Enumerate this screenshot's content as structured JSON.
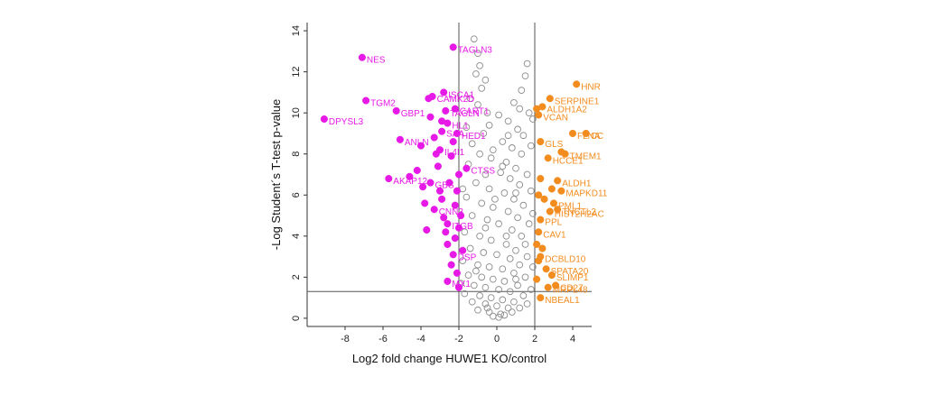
{
  "chart_data": {
    "type": "scatter",
    "title": "",
    "xlabel": "Log2 fold change HUWE1 KO/control",
    "ylabel": "-Log Student´s T-test p-value",
    "xlim": [
      -10,
      5
    ],
    "ylim": [
      -0.4,
      14.4
    ],
    "x_ticks": [
      -8,
      -6,
      -4,
      -2,
      0,
      2,
      4
    ],
    "y_ticks": [
      0,
      2,
      4,
      6,
      8,
      10,
      12,
      14
    ],
    "x_tick_labels": [
      "-8",
      "-6",
      "-4",
      "-2",
      "0",
      "2",
      "4"
    ],
    "y_tick_labels": [
      "0",
      "2",
      "4",
      "6",
      "8",
      "10",
      "12",
      "14"
    ],
    "fold_change_cutoffs": [
      -2,
      2
    ],
    "pvalue_cutoff": 1.3,
    "grid": false,
    "colors": {
      "down": "#e619e6",
      "up": "#f28c1e",
      "ns": "#8c8c8c",
      "cutoff_line": "#555555"
    },
    "down_points": [
      {
        "x": -9.1,
        "y": 9.7,
        "label": "DPYSL3"
      },
      {
        "x": -7.1,
        "y": 12.7,
        "label": "NES"
      },
      {
        "x": -6.9,
        "y": 10.6,
        "label": "TGM2"
      },
      {
        "x": -5.3,
        "y": 10.1,
        "label": "GBP1"
      },
      {
        "x": -5.1,
        "y": 8.7,
        "label": "ANLN"
      },
      {
        "x": -5.7,
        "y": 6.8,
        "label": "AKAP12"
      },
      {
        "x": -2.3,
        "y": 13.2,
        "label": "TAGLN3"
      },
      {
        "x": -3.4,
        "y": 10.8,
        "label": "CAMK2D"
      },
      {
        "x": -2.8,
        "y": 11.0,
        "label": "ISCA1"
      },
      {
        "x": -2.7,
        "y": 10.1,
        "label": "TAGLN"
      },
      {
        "x": -2.2,
        "y": 10.2,
        "label": "CART1"
      },
      {
        "x": -2.6,
        "y": 9.5,
        "label": "HL1"
      },
      {
        "x": -2.9,
        "y": 9.1,
        "label": "SAA"
      },
      {
        "x": -2.1,
        "y": 9.0,
        "label": "HED1"
      },
      {
        "x": -3.0,
        "y": 8.2,
        "label": "IL4I1"
      },
      {
        "x": -3.5,
        "y": 6.6,
        "label": "GBS"
      },
      {
        "x": -1.6,
        "y": 7.3,
        "label": "CTSS"
      },
      {
        "x": -3.3,
        "y": 5.3,
        "label": "CNN3"
      },
      {
        "x": -2.6,
        "y": 4.6,
        "label": "ITGB"
      },
      {
        "x": -2.3,
        "y": 3.1,
        "label": "DSP"
      },
      {
        "x": -2.6,
        "y": 1.8,
        "label": "MX1"
      },
      {
        "x": -4.6,
        "y": 6.9,
        "label": ""
      },
      {
        "x": -4.2,
        "y": 7.2,
        "label": ""
      },
      {
        "x": -3.6,
        "y": 10.7,
        "label": ""
      },
      {
        "x": -3.5,
        "y": 9.8,
        "label": ""
      },
      {
        "x": -3.3,
        "y": 8.8,
        "label": ""
      },
      {
        "x": -3.2,
        "y": 8.0,
        "label": ""
      },
      {
        "x": -3.1,
        "y": 7.4,
        "label": ""
      },
      {
        "x": -3.0,
        "y": 6.2,
        "label": ""
      },
      {
        "x": -2.9,
        "y": 5.8,
        "label": ""
      },
      {
        "x": -2.8,
        "y": 4.9,
        "label": ""
      },
      {
        "x": -2.7,
        "y": 4.2,
        "label": ""
      },
      {
        "x": -2.6,
        "y": 3.6,
        "label": ""
      },
      {
        "x": -2.5,
        "y": 6.6,
        "label": ""
      },
      {
        "x": -2.4,
        "y": 7.9,
        "label": ""
      },
      {
        "x": -2.4,
        "y": 2.6,
        "label": ""
      },
      {
        "x": -2.3,
        "y": 8.6,
        "label": ""
      },
      {
        "x": -2.2,
        "y": 5.5,
        "label": ""
      },
      {
        "x": -2.2,
        "y": 3.9,
        "label": ""
      },
      {
        "x": -2.1,
        "y": 6.2,
        "label": ""
      },
      {
        "x": -2.1,
        "y": 2.2,
        "label": ""
      },
      {
        "x": -2.0,
        "y": 7.0,
        "label": ""
      },
      {
        "x": -2.0,
        "y": 4.4,
        "label": ""
      },
      {
        "x": -1.9,
        "y": 5.0,
        "label": ""
      },
      {
        "x": -1.8,
        "y": 3.3,
        "label": ""
      },
      {
        "x": -3.8,
        "y": 5.6,
        "label": ""
      },
      {
        "x": -3.9,
        "y": 6.4,
        "label": ""
      },
      {
        "x": -4.0,
        "y": 8.4,
        "label": ""
      },
      {
        "x": -3.7,
        "y": 4.3,
        "label": ""
      },
      {
        "x": -2.9,
        "y": 9.6,
        "label": ""
      },
      {
        "x": -2.0,
        "y": 1.5,
        "label": ""
      }
    ],
    "up_points": [
      {
        "x": 4.2,
        "y": 11.4,
        "label": "HNR"
      },
      {
        "x": 2.8,
        "y": 10.7,
        "label": "SERPINE1"
      },
      {
        "x": 2.4,
        "y": 10.3,
        "label": "ALDH1A2"
      },
      {
        "x": 2.2,
        "y": 9.9,
        "label": "VCAN"
      },
      {
        "x": 4.7,
        "y": 9.0,
        "label": "CC"
      },
      {
        "x": 4.0,
        "y": 9.0,
        "label": "FLNA"
      },
      {
        "x": 2.3,
        "y": 8.6,
        "label": "GLS"
      },
      {
        "x": 3.6,
        "y": 8.0,
        "label": "TMEM1"
      },
      {
        "x": 2.7,
        "y": 7.8,
        "label": "HCCE1"
      },
      {
        "x": 3.2,
        "y": 6.7,
        "label": "ALDH1"
      },
      {
        "x": 3.4,
        "y": 6.2,
        "label": "MAPKD11"
      },
      {
        "x": 3.0,
        "y": 5.6,
        "label": "PML1"
      },
      {
        "x": 3.2,
        "y": 5.3,
        "label": "TNCTL2"
      },
      {
        "x": 2.8,
        "y": 5.2,
        "label": "HIST2H2AC"
      },
      {
        "x": 2.3,
        "y": 4.8,
        "label": "PPL"
      },
      {
        "x": 2.2,
        "y": 4.2,
        "label": "CAV1"
      },
      {
        "x": 2.3,
        "y": 3.0,
        "label": "DCBLD10"
      },
      {
        "x": 2.6,
        "y": 2.4,
        "label": "SPATA20"
      },
      {
        "x": 2.9,
        "y": 2.1,
        "label": "SLIMP1"
      },
      {
        "x": 3.1,
        "y": 1.6,
        "label": "CD27"
      },
      {
        "x": 2.7,
        "y": 1.5,
        "label": "MRPL48"
      },
      {
        "x": 2.3,
        "y": 1.0,
        "label": "NBEAL1"
      },
      {
        "x": 2.1,
        "y": 10.2,
        "label": ""
      },
      {
        "x": 2.3,
        "y": 6.8,
        "label": ""
      },
      {
        "x": 2.2,
        "y": 6.0,
        "label": ""
      },
      {
        "x": 2.5,
        "y": 5.8,
        "label": ""
      },
      {
        "x": 2.1,
        "y": 3.6,
        "label": ""
      },
      {
        "x": 2.2,
        "y": 2.8,
        "label": ""
      },
      {
        "x": 2.1,
        "y": 1.9,
        "label": ""
      },
      {
        "x": 3.4,
        "y": 8.1,
        "label": ""
      },
      {
        "x": 2.9,
        "y": 6.3,
        "label": ""
      },
      {
        "x": 2.4,
        "y": 3.4,
        "label": ""
      }
    ],
    "ns_points": [
      {
        "x": -1.2,
        "y": 13.6
      },
      {
        "x": -1.0,
        "y": 12.9
      },
      {
        "x": -0.9,
        "y": 12.3
      },
      {
        "x": -1.1,
        "y": 11.9
      },
      {
        "x": -0.6,
        "y": 11.6
      },
      {
        "x": -0.8,
        "y": 11.2
      },
      {
        "x": 1.5,
        "y": 11.8
      },
      {
        "x": 1.6,
        "y": 12.4
      },
      {
        "x": 1.3,
        "y": 11.1
      },
      {
        "x": 0.9,
        "y": 10.5
      },
      {
        "x": 1.2,
        "y": 10.2
      },
      {
        "x": 1.7,
        "y": 10.0
      },
      {
        "x": -0.5,
        "y": 10.0
      },
      {
        "x": -1.4,
        "y": 10.7
      },
      {
        "x": -0.4,
        "y": 9.4
      },
      {
        "x": 0.6,
        "y": 9.6
      },
      {
        "x": 1.1,
        "y": 9.2
      },
      {
        "x": 1.4,
        "y": 8.9
      },
      {
        "x": -0.7,
        "y": 9.0
      },
      {
        "x": -1.3,
        "y": 8.5
      },
      {
        "x": 0.3,
        "y": 8.6
      },
      {
        "x": 0.8,
        "y": 8.3
      },
      {
        "x": 1.3,
        "y": 8.0
      },
      {
        "x": -0.9,
        "y": 8.0
      },
      {
        "x": -0.3,
        "y": 7.8
      },
      {
        "x": 0.5,
        "y": 7.6
      },
      {
        "x": 1.0,
        "y": 7.3
      },
      {
        "x": 1.6,
        "y": 7.0
      },
      {
        "x": -1.5,
        "y": 7.5
      },
      {
        "x": -0.6,
        "y": 7.0
      },
      {
        "x": 0.2,
        "y": 7.1
      },
      {
        "x": 0.7,
        "y": 6.8
      },
      {
        "x": 1.2,
        "y": 6.5
      },
      {
        "x": 1.8,
        "y": 6.2
      },
      {
        "x": -1.1,
        "y": 6.6
      },
      {
        "x": -0.4,
        "y": 6.3
      },
      {
        "x": 0.4,
        "y": 6.1
      },
      {
        "x": 0.9,
        "y": 5.8
      },
      {
        "x": 1.4,
        "y": 5.5
      },
      {
        "x": -1.6,
        "y": 5.9
      },
      {
        "x": -0.8,
        "y": 5.6
      },
      {
        "x": -0.2,
        "y": 5.4
      },
      {
        "x": 0.6,
        "y": 5.2
      },
      {
        "x": 1.1,
        "y": 4.9
      },
      {
        "x": 1.7,
        "y": 4.6
      },
      {
        "x": -1.3,
        "y": 5.0
      },
      {
        "x": -0.5,
        "y": 4.8
      },
      {
        "x": 0.1,
        "y": 4.6
      },
      {
        "x": 0.8,
        "y": 4.3
      },
      {
        "x": 1.3,
        "y": 4.0
      },
      {
        "x": -1.7,
        "y": 4.2
      },
      {
        "x": -0.9,
        "y": 4.0
      },
      {
        "x": -0.3,
        "y": 3.8
      },
      {
        "x": 0.5,
        "y": 3.6
      },
      {
        "x": 1.0,
        "y": 3.3
      },
      {
        "x": 1.6,
        "y": 3.0
      },
      {
        "x": -1.4,
        "y": 3.4
      },
      {
        "x": -0.7,
        "y": 3.2
      },
      {
        "x": 0.0,
        "y": 3.1
      },
      {
        "x": 0.7,
        "y": 2.9
      },
      {
        "x": 1.2,
        "y": 2.6
      },
      {
        "x": -1.8,
        "y": 2.8
      },
      {
        "x": -1.0,
        "y": 2.6
      },
      {
        "x": -0.4,
        "y": 2.5
      },
      {
        "x": 0.3,
        "y": 2.4
      },
      {
        "x": 0.9,
        "y": 2.2
      },
      {
        "x": 1.5,
        "y": 2.0
      },
      {
        "x": -1.5,
        "y": 2.1
      },
      {
        "x": -0.8,
        "y": 2.0
      },
      {
        "x": -0.2,
        "y": 1.9
      },
      {
        "x": 0.4,
        "y": 1.8
      },
      {
        "x": 1.1,
        "y": 1.6
      },
      {
        "x": 1.8,
        "y": 1.4
      },
      {
        "x": -1.2,
        "y": 1.6
      },
      {
        "x": -0.6,
        "y": 1.5
      },
      {
        "x": 0.1,
        "y": 1.4
      },
      {
        "x": 0.7,
        "y": 1.3
      },
      {
        "x": 1.4,
        "y": 1.1
      },
      {
        "x": -1.7,
        "y": 1.2
      },
      {
        "x": -0.9,
        "y": 1.1
      },
      {
        "x": -0.3,
        "y": 1.0
      },
      {
        "x": 0.3,
        "y": 0.9
      },
      {
        "x": 0.9,
        "y": 0.8
      },
      {
        "x": 1.6,
        "y": 0.7
      },
      {
        "x": -1.3,
        "y": 0.8
      },
      {
        "x": -0.6,
        "y": 0.7
      },
      {
        "x": 0.0,
        "y": 0.6
      },
      {
        "x": 0.6,
        "y": 0.5
      },
      {
        "x": 1.2,
        "y": 0.5
      },
      {
        "x": -1.0,
        "y": 0.4
      },
      {
        "x": -0.4,
        "y": 0.3
      },
      {
        "x": 0.2,
        "y": 0.2
      },
      {
        "x": 0.8,
        "y": 0.3
      },
      {
        "x": -0.2,
        "y": 0.1
      },
      {
        "x": 0.1,
        "y": 0.05
      },
      {
        "x": 0.4,
        "y": 0.15
      },
      {
        "x": -0.5,
        "y": 0.5
      },
      {
        "x": 1.0,
        "y": 1.9
      },
      {
        "x": -1.1,
        "y": 2.3
      },
      {
        "x": 0.5,
        "y": 4.0
      },
      {
        "x": -0.1,
        "y": 5.8
      },
      {
        "x": 0.3,
        "y": 7.4
      },
      {
        "x": 1.0,
        "y": 6.1
      },
      {
        "x": -0.6,
        "y": 4.4
      },
      {
        "x": 1.5,
        "y": 3.6
      },
      {
        "x": -1.9,
        "y": 1.7
      },
      {
        "x": 1.9,
        "y": 2.5
      },
      {
        "x": 1.9,
        "y": 5.1
      },
      {
        "x": -1.8,
        "y": 6.3
      },
      {
        "x": 0.6,
        "y": 8.9
      },
      {
        "x": -0.2,
        "y": 8.2
      },
      {
        "x": 1.8,
        "y": 8.4
      },
      {
        "x": -1.6,
        "y": 9.3
      },
      {
        "x": 1.9,
        "y": 9.7
      },
      {
        "x": 0.1,
        "y": 9.9
      },
      {
        "x": -1.0,
        "y": 10.4
      }
    ]
  }
}
